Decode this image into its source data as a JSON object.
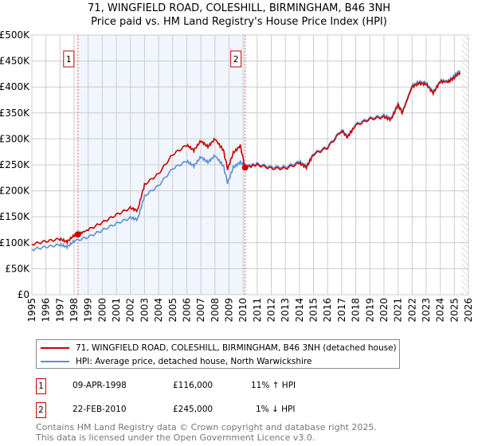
{
  "header": {
    "title": "71, WINGFIELD ROAD, COLESHILL, BIRMINGHAM, B46 3NH",
    "subtitle": "Price paid vs. HM Land Registry's House Price Index (HPI)"
  },
  "chart_data": {
    "type": "line",
    "title": "71, WINGFIELD ROAD, COLESHILL, BIRMINGHAM, B46 3NH",
    "subtitle": "Price paid vs. HM Land Registry's House Price Index (HPI)",
    "xlim": [
      1995,
      2026
    ],
    "ylim": [
      0,
      500000
    ],
    "x_ticks": [
      "1995",
      "1996",
      "1997",
      "1998",
      "1999",
      "2000",
      "2001",
      "2002",
      "2003",
      "2004",
      "2005",
      "2006",
      "2007",
      "2008",
      "2009",
      "2010",
      "2011",
      "2012",
      "2013",
      "2014",
      "2015",
      "2016",
      "2017",
      "2018",
      "2019",
      "2020",
      "2021",
      "2022",
      "2023",
      "2024",
      "2025",
      "2026"
    ],
    "y_ticks": [
      {
        "v": 0,
        "label": "£0"
      },
      {
        "v": 50000,
        "label": "£50K"
      },
      {
        "v": 100000,
        "label": "£100K"
      },
      {
        "v": 150000,
        "label": "£150K"
      },
      {
        "v": 200000,
        "label": "£200K"
      },
      {
        "v": 250000,
        "label": "£250K"
      },
      {
        "v": 300000,
        "label": "£300K"
      },
      {
        "v": 350000,
        "label": "£350K"
      },
      {
        "v": 400000,
        "label": "£400K"
      },
      {
        "v": 450000,
        "label": "£450K"
      },
      {
        "v": 500000,
        "label": "£500K"
      }
    ],
    "grid": true,
    "shaded_range": [
      1998.27,
      2010.14
    ],
    "hatched_from": 2025.5,
    "series": [
      {
        "name": "HPI: Average price, detached house, North Warwickshire",
        "color": "#5b8fd4",
        "x": [
          1995,
          1996,
          1997,
          1997.5,
          1998,
          1999,
          2000,
          2001,
          2002,
          2002.5,
          2003,
          2004,
          2005,
          2006,
          2006.5,
          2007,
          2007.5,
          2008,
          2008.6,
          2008.9,
          2009.3,
          2009.8,
          2010.14,
          2011,
          2012,
          2013,
          2014,
          2014.5,
          2015,
          2016,
          2017,
          2017.4,
          2018,
          2019,
          2020,
          2020.5,
          2021,
          2021.3,
          2022,
          2022.5,
          2023,
          2023.5,
          2024,
          2024.6,
          2025,
          2025.4
        ],
        "y": [
          87000,
          92000,
          96000,
          92000,
          103000,
          111000,
          124000,
          137000,
          148000,
          145000,
          190000,
          210000,
          243000,
          257000,
          248000,
          265000,
          255000,
          268000,
          248000,
          215000,
          245000,
          255000,
          248000,
          252000,
          246000,
          246000,
          256000,
          248000,
          272000,
          285000,
          318000,
          305000,
          328000,
          340000,
          345000,
          340000,
          368000,
          352000,
          403000,
          410000,
          408000,
          390000,
          412000,
          412000,
          422000,
          432000
        ]
      },
      {
        "name": "71, WINGFIELD ROAD, COLESHILL, BIRMINGHAM, B46 3NH (detached house)",
        "color": "#cc0000",
        "x": [
          1995,
          1996,
          1997,
          1997.5,
          1998,
          1998.27,
          1999,
          2000,
          2001,
          2002,
          2002.5,
          2003,
          2004,
          2005,
          2006,
          2006.5,
          2007,
          2007.5,
          2008,
          2008.6,
          2008.9,
          2009.3,
          2009.8,
          2010.14,
          2011,
          2012,
          2013,
          2014,
          2014.5,
          2015,
          2016,
          2017,
          2017.4,
          2018,
          2019,
          2020,
          2020.5,
          2021,
          2021.3,
          2022,
          2022.5,
          2023,
          2023.5,
          2024,
          2024.6,
          2025,
          2025.4
        ],
        "y": [
          97000,
          103000,
          107000,
          102000,
          114000,
          116000,
          125000,
          139000,
          154000,
          167000,
          162000,
          212000,
          233000,
          270000,
          288000,
          278000,
          296000,
          285000,
          300000,
          278000,
          242000,
          273000,
          287000,
          245000,
          250000,
          243000,
          243000,
          253000,
          245000,
          270000,
          283000,
          316000,
          303000,
          326000,
          338000,
          342000,
          337000,
          365000,
          350000,
          400000,
          407000,
          405000,
          388000,
          410000,
          410000,
          418000,
          428000
        ]
      }
    ],
    "sales": [
      {
        "label": "1",
        "x": 1998.27,
        "y": 116000
      },
      {
        "label": "2",
        "x": 2010.14,
        "y": 245000
      }
    ]
  },
  "legend": {
    "items": [
      {
        "label": "71, WINGFIELD ROAD, COLESHILL, BIRMINGHAM, B46 3NH (detached house)",
        "color": "#cc0000"
      },
      {
        "label": "HPI: Average price, detached house, North Warwickshire",
        "color": "#5b8fd4"
      }
    ]
  },
  "transactions": [
    {
      "num": "1",
      "date": "09-APR-1998",
      "price": "£116,000",
      "hpi": "11% ↑ HPI"
    },
    {
      "num": "2",
      "date": "22-FEB-2010",
      "price": "£245,000",
      "hpi": "1% ↓ HPI"
    }
  ],
  "footer": {
    "line1": "Contains HM Land Registry data © Crown copyright and database right 2025.",
    "line2": "This data is licensed under the Open Government Licence v3.0."
  }
}
